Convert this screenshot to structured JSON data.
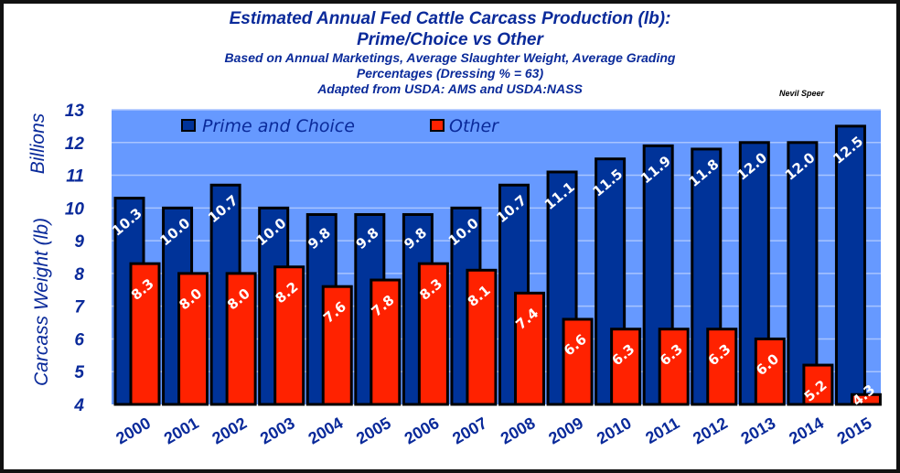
{
  "chart_data": {
    "type": "bar",
    "title": "Estimated Annual Fed Cattle Carcass Production (lb):",
    "title_line2": "Prime/Choice vs Other",
    "subtitle_lines": [
      "Based on Annual Marketings, Average Slaughter Weight, Average Grading",
      "Percentages (Dressing % = 63)",
      "Adapted from USDA: AMS and USDA:NASS"
    ],
    "author": "Nevil Speer",
    "ylabel": "Carcass Weight (lb)",
    "yunit": "Billions",
    "ylim": [
      4,
      13
    ],
    "yticks": [
      "4",
      "5",
      "6",
      "7",
      "8",
      "9",
      "10",
      "11",
      "12",
      "13"
    ],
    "grid": true,
    "legend_placement": "top-left",
    "categories": [
      "2000",
      "2001",
      "2002",
      "2003",
      "2004",
      "2005",
      "2006",
      "2007",
      "2008",
      "2009",
      "2010",
      "2011",
      "2012",
      "2013",
      "2014",
      "2015"
    ],
    "series": [
      {
        "name": "Prime and Choice",
        "color": "#003399",
        "values": [
          10.3,
          10.0,
          10.7,
          10.0,
          9.8,
          9.8,
          9.8,
          10.0,
          10.7,
          11.1,
          11.5,
          11.9,
          11.8,
          12.0,
          12.0,
          12.5
        ],
        "labels": [
          "10.3",
          "10.0",
          "10.7",
          "10.0",
          "9.8",
          "9.8",
          "9.8",
          "10.0",
          "10.7",
          "11.1",
          "11.5",
          "11.9",
          "11.8",
          "12.0",
          "12.0",
          "12.5"
        ]
      },
      {
        "name": "Other",
        "color": "#FF2200",
        "values": [
          8.3,
          8.0,
          8.0,
          8.2,
          7.6,
          7.8,
          8.3,
          8.1,
          7.4,
          6.6,
          6.3,
          6.3,
          6.3,
          6.0,
          5.2,
          4.3
        ],
        "labels": [
          "8.3",
          "8.0",
          "8.0",
          "8.2",
          "7.6",
          "7.8",
          "8.3",
          "8.1",
          "7.4",
          "6.6",
          "6.3",
          "6.3",
          "6.3",
          "6.0",
          "5.2",
          "4.3"
        ]
      }
    ],
    "plot_background": "#6699FF"
  }
}
